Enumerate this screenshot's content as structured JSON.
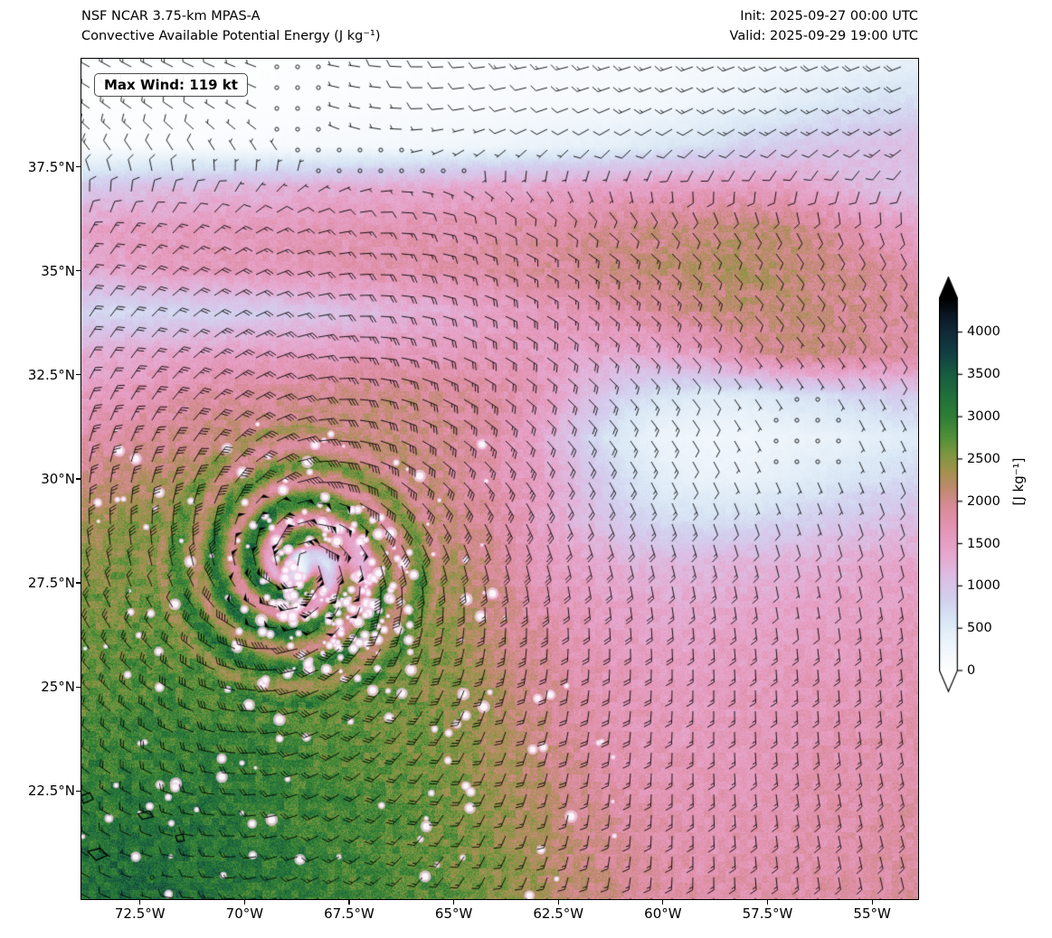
{
  "header": {
    "title_line1": "NSF NCAR 3.75-km MPAS-A",
    "title_line2": "Convective Available Potential Energy (J kg⁻¹)",
    "init_label": "Init: 2025-09-27 00:00 UTC",
    "valid_label": "Valid: 2025-09-29 19:00 UTC"
  },
  "annotation": {
    "max_wind": "Max Wind: 119 kt"
  },
  "axes": {
    "x_ticks": [
      "72.5°W",
      "70°W",
      "67.5°W",
      "65°W",
      "62.5°W",
      "60°W",
      "57.5°W",
      "55°W"
    ],
    "x_tick_lons": [
      -72.5,
      -70,
      -67.5,
      -65,
      -62.5,
      -60,
      -57.5,
      -55
    ],
    "y_ticks": [
      "37.5°N",
      "35°N",
      "32.5°N",
      "30°N",
      "27.5°N",
      "25°N",
      "22.5°N"
    ],
    "y_tick_lats": [
      37.5,
      35,
      32.5,
      30,
      27.5,
      25,
      22.5
    ],
    "lon_range": [
      -73.9,
      -53.9
    ],
    "lat_range": [
      19.9,
      40.1
    ]
  },
  "colorbar": {
    "label": "[J kg⁻¹]",
    "ticks": [
      0,
      500,
      1000,
      1500,
      2000,
      2500,
      3000,
      3500,
      4000
    ],
    "vmin": 0,
    "vmax": 4000,
    "vmax_extended": 4400,
    "extend": "both",
    "stops": [
      [
        0,
        "#ffffff"
      ],
      [
        300,
        "#eef5fb"
      ],
      [
        600,
        "#d9e7f5"
      ],
      [
        850,
        "#d3cfee"
      ],
      [
        1100,
        "#dcbfe4"
      ],
      [
        1400,
        "#e7a6cd"
      ],
      [
        1700,
        "#e394b3"
      ],
      [
        1950,
        "#d98a96"
      ],
      [
        2150,
        "#bf8a70"
      ],
      [
        2350,
        "#a5914f"
      ],
      [
        2550,
        "#7f9740"
      ],
      [
        2750,
        "#539038"
      ],
      [
        3000,
        "#2f7e36"
      ],
      [
        3250,
        "#20703a"
      ],
      [
        3500,
        "#175c40"
      ],
      [
        3750,
        "#123f41"
      ],
      [
        4000,
        "#102a38"
      ],
      [
        4200,
        "#0a1724"
      ],
      [
        4400,
        "#000000"
      ]
    ]
  },
  "chart_data": {
    "type": "heatmap",
    "variable": "Convective Available Potential Energy",
    "units": "J kg⁻¹",
    "model": "NSF NCAR 3.75-km MPAS-A",
    "init": "2025-09-27 00:00 UTC",
    "valid": "2025-09-29 19:00 UTC",
    "max_wind_kt": 119,
    "overlays": [
      "wind_barbs",
      "coastlines"
    ],
    "grid": {
      "lons": [
        -74,
        -73,
        -72,
        -71,
        -70,
        -69,
        -68,
        -67,
        -66,
        -65,
        -64,
        -63,
        -62,
        -61,
        -60,
        -59,
        -58,
        -57,
        -56,
        -55,
        -54
      ],
      "lats": [
        40,
        39,
        38,
        37,
        36,
        35,
        34,
        33,
        32,
        31,
        30,
        29,
        28,
        27,
        26,
        25,
        24,
        23,
        22,
        21,
        20
      ],
      "values": [
        [
          30,
          30,
          30,
          30,
          30,
          40,
          50,
          50,
          60,
          60,
          80,
          90,
          100,
          110,
          130,
          160,
          200,
          250,
          300,
          350,
          400
        ],
        [
          40,
          40,
          40,
          50,
          50,
          60,
          70,
          80,
          90,
          100,
          120,
          140,
          160,
          180,
          220,
          280,
          350,
          450,
          550,
          650,
          700
        ],
        [
          80,
          80,
          90,
          100,
          110,
          130,
          150,
          170,
          200,
          230,
          280,
          330,
          380,
          450,
          550,
          650,
          800,
          900,
          1000,
          1050,
          1100
        ],
        [
          900,
          1000,
          1100,
          1150,
          1200,
          1250,
          1300,
          1300,
          1350,
          1350,
          1400,
          1400,
          1450,
          1500,
          1500,
          1550,
          1550,
          1500,
          1300,
          1100,
          1000
        ],
        [
          1400,
          1500,
          1550,
          1600,
          1600,
          1600,
          1650,
          1650,
          1700,
          1700,
          1750,
          1800,
          1850,
          1950,
          2000,
          2050,
          2100,
          2050,
          1850,
          1600,
          1450
        ],
        [
          1300,
          1400,
          1500,
          1550,
          1600,
          1600,
          1650,
          1700,
          1700,
          1750,
          1800,
          1850,
          1900,
          2000,
          2100,
          2200,
          2200,
          2100,
          2000,
          1900,
          1800
        ],
        [
          800,
          700,
          750,
          800,
          850,
          950,
          1050,
          1150,
          1250,
          1350,
          1450,
          1550,
          1650,
          1750,
          1850,
          2000,
          2100,
          2100,
          2000,
          1900,
          1850
        ],
        [
          1300,
          1350,
          1400,
          1450,
          1500,
          1500,
          1550,
          1600,
          1600,
          1600,
          1600,
          1500,
          1400,
          1350,
          1350,
          1500,
          1800,
          2000,
          2000,
          1900,
          1800
        ],
        [
          1500,
          1600,
          1700,
          1800,
          1850,
          1900,
          1950,
          2000,
          2000,
          1900,
          1800,
          1600,
          1200,
          800,
          600,
          500,
          500,
          600,
          700,
          800,
          900
        ],
        [
          1700,
          1800,
          1900,
          2000,
          2050,
          2100,
          2100,
          2100,
          2000,
          1900,
          1700,
          1400,
          900,
          500,
          300,
          250,
          250,
          300,
          350,
          400,
          500
        ],
        [
          2000,
          2100,
          2200,
          2300,
          2300,
          2300,
          2250,
          2200,
          2100,
          1900,
          1700,
          1500,
          1100,
          700,
          450,
          350,
          350,
          450,
          550,
          650,
          750
        ],
        [
          2300,
          2400,
          2500,
          2500,
          2500,
          2500,
          2400,
          2300,
          2200,
          2000,
          1800,
          1500,
          1200,
          900,
          700,
          650,
          700,
          800,
          900,
          1000,
          1100
        ],
        [
          2400,
          2500,
          2500,
          2600,
          2550,
          2000,
          900,
          1700,
          2500,
          2200,
          1900,
          1600,
          1400,
          1250,
          1150,
          1150,
          1200,
          1250,
          1300,
          1350,
          1400
        ],
        [
          2500,
          2600,
          2600,
          2650,
          2600,
          2450,
          2250,
          2450,
          2500,
          2300,
          2000,
          1700,
          1550,
          1450,
          1350,
          1350,
          1400,
          1400,
          1450,
          1500,
          1500
        ],
        [
          2600,
          2700,
          2700,
          2700,
          2700,
          2600,
          2500,
          2550,
          2500,
          2350,
          2100,
          1850,
          1650,
          1550,
          1450,
          1450,
          1500,
          1500,
          1500,
          1550,
          1600
        ],
        [
          2700,
          2750,
          2800,
          2800,
          2800,
          2700,
          2650,
          2600,
          2550,
          2400,
          2200,
          1950,
          1750,
          1600,
          1550,
          1500,
          1550,
          1600,
          1600,
          1600,
          1650
        ],
        [
          2800,
          2900,
          2900,
          2900,
          2900,
          2800,
          2700,
          2650,
          2600,
          2450,
          2250,
          2000,
          1800,
          1650,
          1600,
          1550,
          1600,
          1600,
          1650,
          1700,
          1700
        ],
        [
          2900,
          3000,
          3000,
          3000,
          2950,
          2900,
          2800,
          2700,
          2650,
          2500,
          2300,
          2100,
          1900,
          1700,
          1650,
          1600,
          1600,
          1650,
          1700,
          1700,
          1750
        ],
        [
          3000,
          3100,
          3100,
          3100,
          3000,
          2950,
          2900,
          2800,
          2700,
          2550,
          2400,
          2200,
          2000,
          1800,
          1700,
          1650,
          1650,
          1700,
          1700,
          1750,
          1800
        ],
        [
          3100,
          3200,
          3200,
          3150,
          3100,
          3000,
          2900,
          2850,
          2750,
          2600,
          2450,
          2250,
          2050,
          1900,
          1750,
          1700,
          1700,
          1700,
          1750,
          1800,
          1800
        ],
        [
          3200,
          3300,
          3250,
          3200,
          3100,
          3050,
          2950,
          2850,
          2800,
          2650,
          2500,
          2300,
          2100,
          1950,
          1800,
          1750,
          1750,
          1750,
          1800,
          1800,
          1850
        ]
      ]
    },
    "cyclone": {
      "lon": -68.7,
      "lat": 27.9,
      "max_wind_kt": 119,
      "rmax_deg": 0.4,
      "eye_radius_deg": 0.45,
      "spiral_arms": 2,
      "spiral_tightness": 7
    },
    "wind_model": {
      "jet_speed": 28,
      "jet_lat": 37.2,
      "jet_width": 0.9,
      "trade_u": 6,
      "trade_lat": 23.5,
      "inflow": 0.25,
      "decay_exp": 0.62,
      "calm_zones": [
        {
          "lon": -68.8,
          "lat": 39.5,
          "sig": 1.5,
          "depth": 0.95
        },
        {
          "lon": -56.6,
          "lat": 31.1,
          "sig": 1.9,
          "depth": 0.97
        },
        {
          "lon": -72.1,
          "lat": 27.0,
          "sig": 0.55,
          "depth": 0.9
        },
        {
          "lon": -56.4,
          "lat": 27.2,
          "sig": 0.5,
          "depth": 0.85
        },
        {
          "lon": -72.3,
          "lat": 20.5,
          "sig": 0.55,
          "depth": 0.9
        }
      ]
    },
    "speckles": {
      "seed": 11,
      "count": 380
    },
    "islands": [
      [
        [
          -73.75,
          21.05
        ],
        [
          -73.45,
          21.12
        ],
        [
          -73.28,
          20.95
        ],
        [
          -73.55,
          20.83
        ]
      ],
      [
        [
          -72.55,
          21.95
        ],
        [
          -72.28,
          22.02
        ],
        [
          -72.18,
          21.88
        ],
        [
          -72.45,
          21.82
        ]
      ],
      [
        [
          -71.65,
          21.42
        ],
        [
          -71.48,
          21.46
        ],
        [
          -71.44,
          21.3
        ],
        [
          -71.6,
          21.28
        ]
      ],
      [
        [
          -73.92,
          22.38
        ],
        [
          -73.7,
          22.46
        ],
        [
          -73.62,
          22.3
        ],
        [
          -73.85,
          22.2
        ]
      ]
    ],
    "barb_spacing_px": 23
  }
}
